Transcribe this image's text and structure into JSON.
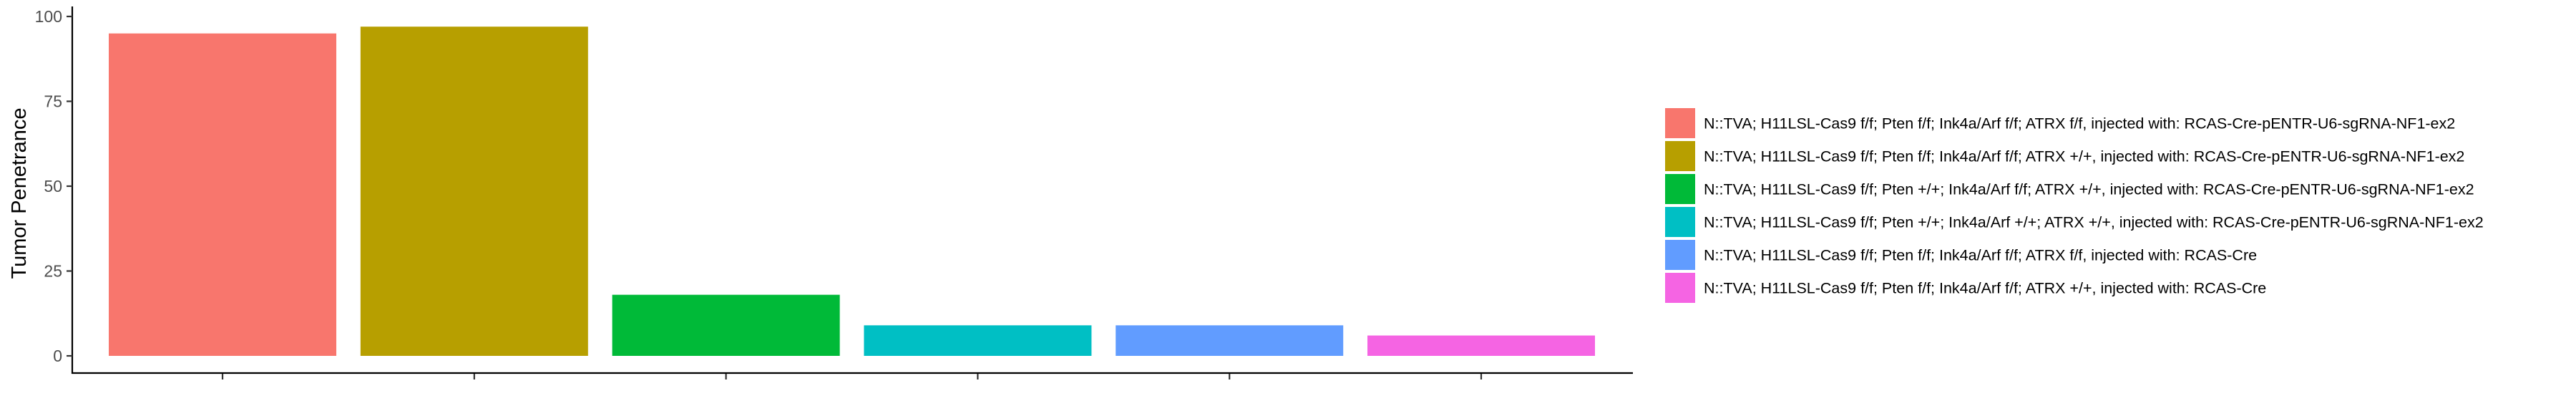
{
  "chart_data": {
    "type": "bar",
    "title": "",
    "xlabel": "",
    "ylabel": "Tumor Penetrance",
    "ylim": [
      0,
      100
    ],
    "yticks": [
      0,
      25,
      50,
      75,
      100
    ],
    "grid": false,
    "legend_position": "right",
    "categories": [
      "N::TVA; H11LSL-Cas9 f/f; Pten f/f; Ink4a/Arf f/f; ATRX f/f, injected with: RCAS-Cre-pENTR-U6-sgRNA-NF1-ex2",
      "N::TVA; H11LSL-Cas9 f/f; Pten f/f; Ink4a/Arf f/f; ATRX +/+, injected with: RCAS-Cre-pENTR-U6-sgRNA-NF1-ex2",
      "N::TVA; H11LSL-Cas9 f/f; Pten +/+; Ink4a/Arf f/f; ATRX +/+, injected with: RCAS-Cre-pENTR-U6-sgRNA-NF1-ex2",
      "N::TVA; H11LSL-Cas9 f/f; Pten +/+; Ink4a/Arf +/+; ATRX +/+, injected with: RCAS-Cre-pENTR-U6-sgRNA-NF1-ex2",
      "N::TVA; H11LSL-Cas9 f/f; Pten f/f; Ink4a/Arf f/f; ATRX f/f, injected with: RCAS-Cre",
      "N::TVA; H11LSL-Cas9 f/f; Pten f/f; Ink4a/Arf f/f; ATRX +/+, injected with: RCAS-Cre"
    ],
    "values": [
      95,
      97,
      18,
      9,
      9,
      6
    ],
    "colors": [
      "#F8766D",
      "#B79F00",
      "#00BA38",
      "#00BFC4",
      "#619CFF",
      "#F564E3"
    ]
  }
}
